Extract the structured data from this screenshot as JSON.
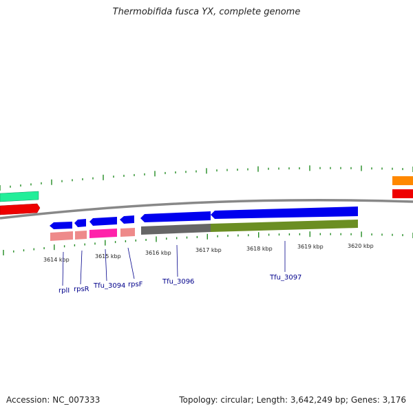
{
  "title": "Thermobifida fusca YX, complete genome",
  "footer": {
    "accession": "Accession: NC_007333",
    "summary": "Topology: circular; Length: 3,642,249 bp; Genes: 3,176"
  },
  "axis": {
    "unit": "kbp",
    "ticks": [
      "3614 kbp",
      "3615 kbp",
      "3616 kbp",
      "3617 kbp",
      "3618 kbp",
      "3619 kbp",
      "3620 kbp"
    ]
  },
  "genes": [
    {
      "name": "rplI"
    },
    {
      "name": "rpsR"
    },
    {
      "name": "Tfu_3094"
    },
    {
      "name": "rpsF"
    },
    {
      "name": "Tfu_3096"
    },
    {
      "name": "Tfu_3097"
    }
  ],
  "colors": {
    "cds": "#0000ee",
    "rna_pink": "#ee8a8a",
    "rna_magenta": "#ff22aa",
    "gc_dark": "#666666",
    "gc_olive": "#6b8e23",
    "cog_green": "#22ee99",
    "cog_red": "#ee0000",
    "cog_orange": "#ff8800",
    "tick": "#228b22",
    "label": "#00008b",
    "backbone": "#888888"
  }
}
